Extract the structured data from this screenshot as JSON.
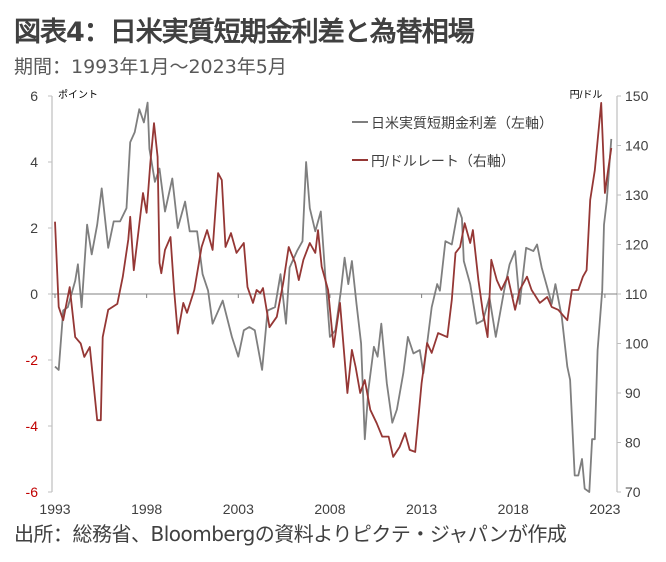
{
  "title": "図表4：日米実質短期金利差と為替相場",
  "subtitle": "期間：1993年1月～2023年5月",
  "source": "出所：総務省、Bloombergの資料よりピクテ・ジャパンが作成",
  "colors": {
    "gray_series": "#7f7f7f",
    "red_series": "#953735",
    "negative_tick": "#c00000",
    "axis": "#a6a6a6"
  },
  "chart_data": {
    "type": "line",
    "title": "日米実質短期金利差と為替相場",
    "left_axis": {
      "unit_label": "ポイント",
      "ylim": [
        -6,
        6
      ],
      "ticks": [
        6,
        4,
        2,
        0,
        -2,
        -4,
        -6
      ],
      "tick_labels": [
        "6",
        "4",
        "2",
        "0",
        "-2",
        "-4",
        "-6"
      ]
    },
    "right_axis": {
      "unit_label": "円/ドル",
      "ylim": [
        70,
        150
      ],
      "ticks": [
        150,
        140,
        130,
        120,
        110,
        100,
        90,
        80,
        70
      ],
      "tick_labels": [
        "150",
        "140",
        "130",
        "120",
        "110",
        "100",
        "90",
        "80",
        "70"
      ]
    },
    "x_axis": {
      "xlim": [
        1993,
        2023.4
      ],
      "ticks": [
        1993,
        1998,
        2003,
        2008,
        2013,
        2018,
        2023
      ],
      "tick_labels": [
        "1993",
        "1998",
        "2003",
        "2008",
        "2013",
        "2018",
        "2023"
      ]
    },
    "legend": {
      "placement": "top-center",
      "entries": [
        "日米実質短期金利差（左軸）",
        "円/ドルレート（右軸）"
      ]
    },
    "series": [
      {
        "name": "日米実質短期金利差（左軸）",
        "axis": "left",
        "color": "#7f7f7f",
        "x": [
          1993.0,
          1993.2,
          1993.45,
          1993.7,
          1994.1,
          1994.25,
          1994.45,
          1994.75,
          1995.0,
          1995.3,
          1995.55,
          1995.9,
          1996.2,
          1996.55,
          1996.9,
          1997.1,
          1997.35,
          1997.6,
          1997.85,
          1998.05,
          1998.15,
          1998.45,
          1998.7,
          1999.0,
          1999.4,
          1999.7,
          2000.1,
          2000.35,
          2000.75,
          2001.05,
          2001.35,
          2001.6,
          2002.15,
          2002.65,
          2003.0,
          2003.3,
          2003.6,
          2003.9,
          2004.3,
          2004.6,
          2005.0,
          2005.3,
          2005.6,
          2005.8,
          2006.2,
          2006.5,
          2006.7,
          2006.9,
          2007.2,
          2007.5,
          2007.75,
          2008.0,
          2008.3,
          2008.6,
          2008.8,
          2009.0,
          2009.2,
          2009.45,
          2009.7,
          2009.9,
          2010.1,
          2010.4,
          2010.6,
          2010.8,
          2011.1,
          2011.4,
          2011.65,
          2012.0,
          2012.25,
          2012.55,
          2012.9,
          2013.1,
          2013.55,
          2013.85,
          2014.0,
          2014.3,
          2014.65,
          2015.0,
          2015.2,
          2015.3,
          2015.65,
          2016.0,
          2016.35,
          2016.7,
          2017.05,
          2017.5,
          2017.8,
          2018.1,
          2018.35,
          2018.7,
          2019.1,
          2019.3,
          2019.55,
          2019.85,
          2020.1,
          2020.3,
          2020.65,
          2020.95,
          2021.1,
          2021.35,
          2021.55,
          2021.75,
          2021.9,
          2022.15,
          2022.3,
          2022.45,
          2022.6,
          2022.85,
          2022.95,
          2023.1,
          2023.35
        ],
        "values": [
          -2.2,
          -2.3,
          -0.5,
          -0.4,
          0.4,
          0.9,
          -0.4,
          2.1,
          1.2,
          2.1,
          3.2,
          1.4,
          2.2,
          2.2,
          2.6,
          4.6,
          4.9,
          5.6,
          5.2,
          5.8,
          4.4,
          3.4,
          3.8,
          2.5,
          3.5,
          2.0,
          2.8,
          1.9,
          1.9,
          0.6,
          0.1,
          -0.9,
          -0.2,
          -1.3,
          -1.9,
          -1.1,
          -1.0,
          -1.1,
          -2.3,
          -0.5,
          -0.4,
          0.6,
          -0.9,
          0.8,
          1.3,
          1.6,
          4.0,
          2.6,
          1.9,
          2.5,
          0.5,
          -1.3,
          -1.1,
          0.1,
          1.1,
          0.3,
          1.0,
          -0.3,
          -1.5,
          -4.4,
          -2.9,
          -1.6,
          -1.9,
          -0.9,
          -2.7,
          -3.9,
          -3.5,
          -2.4,
          -1.3,
          -1.8,
          -1.7,
          -2.4,
          -0.4,
          0.3,
          0.1,
          1.6,
          1.5,
          2.6,
          2.3,
          1.0,
          0.3,
          -0.9,
          -0.8,
          -0.1,
          -1.3,
          0.1,
          0.9,
          1.3,
          -0.3,
          1.4,
          1.3,
          1.5,
          0.8,
          0.2,
          -0.3,
          0.3,
          -0.7,
          -2.2,
          -2.6,
          -5.5,
          -5.5,
          -5.0,
          -5.9,
          -6.0,
          -4.4,
          -4.4,
          -1.7,
          0.1,
          2.1,
          2.8,
          4.7
        ]
      },
      {
        "name": "円/ドルレート（右軸）",
        "axis": "right",
        "color": "#953735",
        "x": [
          1993.0,
          1993.2,
          1993.45,
          1993.8,
          1994.1,
          1994.4,
          1994.6,
          1994.9,
          1995.3,
          1995.5,
          1995.6,
          1995.9,
          1996.4,
          1996.7,
          1997.0,
          1997.1,
          1997.3,
          1997.5,
          1997.8,
          1998.0,
          1998.2,
          1998.4,
          1998.6,
          1998.7,
          1998.8,
          1999.0,
          1999.3,
          1999.5,
          1999.7,
          2000.0,
          2000.2,
          2000.6,
          2001.0,
          2001.3,
          2001.6,
          2001.9,
          2002.1,
          2002.3,
          2002.6,
          2002.9,
          2003.3,
          2003.5,
          2003.8,
          2004.0,
          2004.2,
          2004.35,
          2004.7,
          2005.1,
          2005.45,
          2005.75,
          2006.1,
          2006.3,
          2006.55,
          2006.9,
          2007.2,
          2007.35,
          2007.55,
          2007.9,
          2008.2,
          2008.55,
          2008.95,
          2009.2,
          2009.4,
          2009.65,
          2009.9,
          2010.2,
          2010.55,
          2010.85,
          2011.2,
          2011.45,
          2011.8,
          2012.1,
          2012.35,
          2012.65,
          2013.0,
          2013.3,
          2013.55,
          2013.9,
          2014.4,
          2014.65,
          2014.85,
          2015.1,
          2015.35,
          2015.65,
          2015.8,
          2016.1,
          2016.35,
          2016.6,
          2016.8,
          2017.1,
          2017.35,
          2017.7,
          2018.1,
          2018.35,
          2018.75,
          2019.0,
          2019.45,
          2019.85,
          2020.1,
          2020.45,
          2020.95,
          2021.2,
          2021.55,
          2021.8,
          2022.0,
          2022.2,
          2022.45,
          2022.8,
          2023.0,
          2023.2,
          2023.35
        ],
        "values": [
          124.6,
          107.4,
          104.7,
          111.4,
          101.3,
          100.0,
          97.3,
          99.3,
          84.5,
          84.5,
          101.3,
          106.8,
          108.0,
          113.5,
          121.0,
          125.6,
          114.8,
          121.0,
          130.4,
          126.4,
          136.4,
          144.5,
          137.7,
          116.3,
          114.2,
          118.9,
          121.5,
          110.8,
          102.0,
          108.2,
          106.2,
          110.8,
          119.5,
          122.9,
          118.9,
          134.4,
          133.0,
          119.5,
          122.3,
          118.3,
          120.3,
          111.4,
          108.2,
          110.8,
          110.2,
          111.2,
          103.3,
          105.4,
          112.2,
          119.5,
          116.3,
          112.8,
          116.9,
          120.3,
          118.3,
          122.9,
          115.5,
          110.8,
          99.3,
          108.2,
          90.0,
          98.7,
          95.3,
          90.0,
          92.6,
          86.6,
          83.9,
          81.2,
          81.2,
          77.1,
          79.1,
          81.9,
          78.5,
          78.1,
          92.0,
          100.1,
          98.1,
          102.1,
          101.3,
          108.8,
          118.3,
          119.5,
          124.3,
          120.3,
          122.9,
          112.8,
          106.2,
          101.3,
          116.9,
          112.8,
          110.8,
          113.5,
          106.8,
          110.8,
          113.5,
          110.8,
          108.2,
          109.4,
          107.4,
          106.8,
          104.7,
          110.8,
          110.8,
          113.5,
          114.8,
          129.0,
          135.0,
          148.6,
          130.4,
          135.7,
          139.5
        ]
      }
    ]
  }
}
